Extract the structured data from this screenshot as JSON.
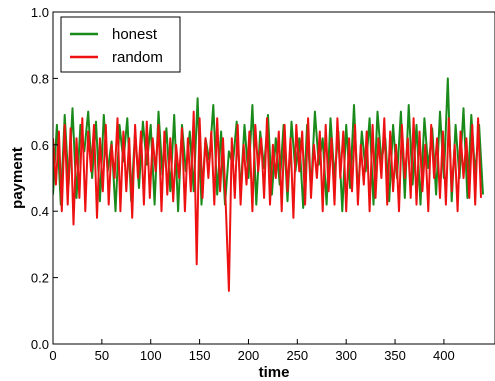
{
  "chart_data": {
    "type": "line",
    "title": "",
    "xlabel": "time",
    "ylabel": "payment",
    "xlim": [
      0,
      440
    ],
    "ylim": [
      0.0,
      1.0
    ],
    "xticks": [
      "0",
      "50",
      "100",
      "150",
      "200",
      "250",
      "300",
      "350",
      "400"
    ],
    "yticks": [
      "0.0",
      "0.2",
      "0.4",
      "0.6",
      "0.8",
      "1.0"
    ],
    "grid": false,
    "legend_position": "top-left",
    "series": [
      {
        "name": "honest",
        "color": "#1a8a1a",
        "x": [
          0,
          4,
          8,
          12,
          16,
          20,
          24,
          28,
          32,
          36,
          40,
          44,
          48,
          52,
          56,
          60,
          64,
          68,
          72,
          76,
          80,
          84,
          88,
          92,
          96,
          100,
          104,
          108,
          112,
          116,
          120,
          124,
          128,
          132,
          136,
          140,
          144,
          148,
          152,
          156,
          160,
          164,
          168,
          172,
          176,
          180,
          184,
          188,
          192,
          196,
          200,
          204,
          208,
          212,
          216,
          220,
          224,
          228,
          232,
          236,
          240,
          244,
          248,
          252,
          256,
          260,
          264,
          268,
          272,
          276,
          280,
          284,
          288,
          292,
          296,
          300,
          304,
          308,
          312,
          316,
          320,
          324,
          328,
          332,
          336,
          340,
          344,
          348,
          352,
          356,
          360,
          364,
          368,
          372,
          376,
          380,
          384,
          388,
          392,
          396,
          400,
          404,
          408,
          412,
          416,
          420,
          424,
          428,
          432,
          436,
          440
        ],
        "y": [
          0.45,
          0.66,
          0.42,
          0.69,
          0.48,
          0.71,
          0.44,
          0.66,
          0.58,
          0.7,
          0.5,
          0.67,
          0.43,
          0.69,
          0.52,
          0.61,
          0.4,
          0.66,
          0.55,
          0.68,
          0.43,
          0.64,
          0.47,
          0.67,
          0.54,
          0.66,
          0.42,
          0.7,
          0.51,
          0.65,
          0.46,
          0.69,
          0.4,
          0.66,
          0.52,
          0.64,
          0.46,
          0.74,
          0.42,
          0.62,
          0.55,
          0.72,
          0.45,
          0.64,
          0.42,
          0.58,
          0.54,
          0.67,
          0.46,
          0.66,
          0.5,
          0.72,
          0.42,
          0.64,
          0.53,
          0.69,
          0.45,
          0.62,
          0.48,
          0.66,
          0.43,
          0.67,
          0.52,
          0.62,
          0.41,
          0.66,
          0.46,
          0.7,
          0.54,
          0.62,
          0.42,
          0.68,
          0.5,
          0.64,
          0.4,
          0.66,
          0.47,
          0.72,
          0.45,
          0.64,
          0.52,
          0.68,
          0.42,
          0.7,
          0.55,
          0.62,
          0.43,
          0.66,
          0.5,
          0.7,
          0.44,
          0.72,
          0.48,
          0.66,
          0.42,
          0.68,
          0.53,
          0.65,
          0.45,
          0.7,
          0.5,
          0.8,
          0.43,
          0.66,
          0.5,
          0.71,
          0.44,
          0.69,
          0.51,
          0.66,
          0.45
        ]
      },
      {
        "name": "random",
        "color": "#ee1111",
        "x": [
          0,
          3,
          6,
          9,
          12,
          15,
          18,
          21,
          24,
          27,
          30,
          33,
          36,
          39,
          42,
          45,
          48,
          51,
          54,
          57,
          60,
          63,
          66,
          69,
          72,
          75,
          78,
          81,
          84,
          87,
          90,
          93,
          96,
          99,
          102,
          105,
          108,
          111,
          114,
          117,
          120,
          123,
          126,
          129,
          132,
          135,
          138,
          141,
          144,
          147,
          150,
          153,
          156,
          159,
          162,
          165,
          168,
          171,
          174,
          177,
          180,
          183,
          186,
          189,
          192,
          195,
          198,
          201,
          204,
          207,
          210,
          213,
          216,
          219,
          222,
          225,
          228,
          231,
          234,
          237,
          240,
          243,
          246,
          249,
          252,
          255,
          258,
          261,
          264,
          267,
          270,
          273,
          276,
          279,
          282,
          285,
          288,
          291,
          294,
          297,
          300,
          303,
          306,
          309,
          312,
          315,
          318,
          321,
          324,
          327,
          330,
          333,
          336,
          339,
          342,
          345,
          348,
          351,
          354,
          357,
          360,
          363,
          366,
          369,
          372,
          375,
          378,
          381,
          384,
          387,
          390,
          393,
          396,
          399,
          402,
          405,
          408,
          411,
          414,
          417,
          420,
          423,
          426,
          429,
          432,
          435,
          438
        ],
        "y": [
          0.62,
          0.48,
          0.64,
          0.4,
          0.66,
          0.42,
          0.65,
          0.36,
          0.62,
          0.44,
          0.68,
          0.4,
          0.64,
          0.52,
          0.66,
          0.38,
          0.62,
          0.46,
          0.66,
          0.42,
          0.6,
          0.5,
          0.68,
          0.4,
          0.64,
          0.46,
          0.62,
          0.38,
          0.66,
          0.5,
          0.64,
          0.42,
          0.67,
          0.44,
          0.62,
          0.52,
          0.66,
          0.4,
          0.64,
          0.45,
          0.62,
          0.43,
          0.6,
          0.5,
          0.65,
          0.4,
          0.62,
          0.46,
          0.7,
          0.24,
          0.68,
          0.44,
          0.62,
          0.5,
          0.64,
          0.42,
          0.68,
          0.46,
          0.62,
          0.4,
          0.16,
          0.62,
          0.44,
          0.66,
          0.42,
          0.6,
          0.48,
          0.64,
          0.4,
          0.66,
          0.52,
          0.62,
          0.44,
          0.68,
          0.42,
          0.6,
          0.5,
          0.64,
          0.4,
          0.66,
          0.46,
          0.62,
          0.38,
          0.66,
          0.52,
          0.64,
          0.42,
          0.68,
          0.44,
          0.6,
          0.5,
          0.64,
          0.4,
          0.66,
          0.46,
          0.62,
          0.42,
          0.68,
          0.5,
          0.64,
          0.4,
          0.62,
          0.46,
          0.66,
          0.42,
          0.6,
          0.48,
          0.64,
          0.4,
          0.66,
          0.44,
          0.62,
          0.5,
          0.68,
          0.42,
          0.64,
          0.46,
          0.6,
          0.4,
          0.66,
          0.5,
          0.62,
          0.44,
          0.68,
          0.42,
          0.64,
          0.46,
          0.6,
          0.4,
          0.66,
          0.5,
          0.62,
          0.44,
          0.64,
          0.42,
          0.68,
          0.46,
          0.6,
          0.4,
          0.64,
          0.5,
          0.62,
          0.44,
          0.66,
          0.42,
          0.68,
          0.44
        ]
      }
    ]
  }
}
